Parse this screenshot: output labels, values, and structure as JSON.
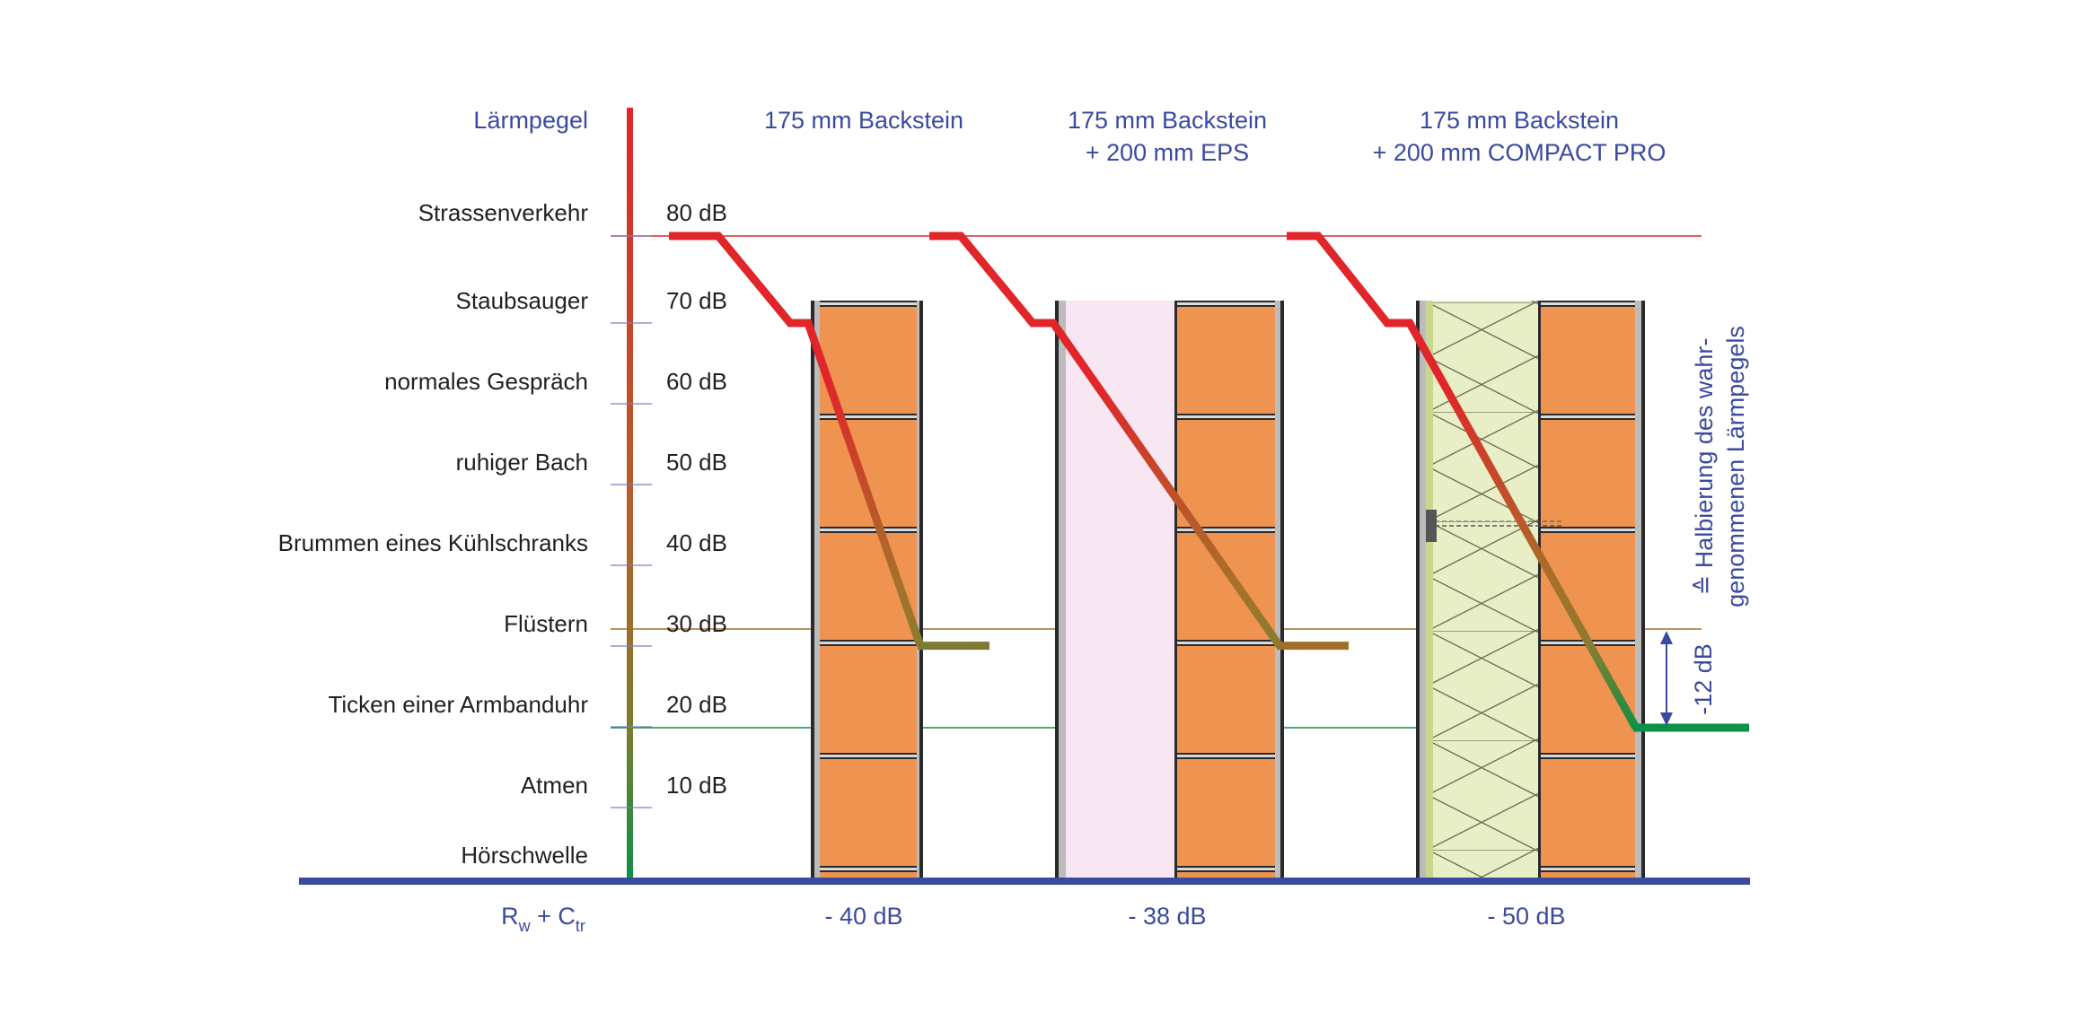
{
  "title": "Lärmpegel",
  "levels": [
    {
      "label": "Strassenverkehr",
      "db": "80 dB"
    },
    {
      "label": "Staubsauger",
      "db": "70 dB"
    },
    {
      "label": "normales Gespräch",
      "db": "60 dB"
    },
    {
      "label": "ruhiger Bach",
      "db": "50 dB"
    },
    {
      "label": "Brummen eines Kühlschranks",
      "db": "40 dB"
    },
    {
      "label": "Flüstern",
      "db": "30 dB"
    },
    {
      "label": "Ticken einer Armbanduhr",
      "db": "20 dB"
    },
    {
      "label": "Atmen",
      "db": "10 dB"
    },
    {
      "label": "Hörschwelle",
      "db": ""
    }
  ],
  "walls": [
    {
      "line1": "175 mm Backstein",
      "line2": "",
      "rating": "- 40 dB",
      "start_db": 80,
      "end_db": 30
    },
    {
      "line1": "175 mm Backstein",
      "line2": "+ 200 mm EPS",
      "rating": "- 38 dB",
      "start_db": 80,
      "end_db": 30
    },
    {
      "line1": "175 mm Backstein",
      "line2": "+ 200 mm COMPACT PRO",
      "rating": "- 50 dB",
      "start_db": 80,
      "end_db": 20
    }
  ],
  "rating_label": {
    "r": "R",
    "r_sub": "w",
    "plus": " + C",
    "c_sub": "tr"
  },
  "annotation": {
    "diff": "-12 dB",
    "text_line1": "≙ Halbierung des wahr-",
    "text_line2": "genommenen Lärmpegels"
  },
  "colors": {
    "blue": "#3a4a9f",
    "red": "#e0262a",
    "olive": "#7d7a32",
    "brown": "#a0702b",
    "green": "#0c9146",
    "brick": "#ef9450",
    "eps": "#f8e6f2",
    "insulation": "#e8efc6"
  }
}
